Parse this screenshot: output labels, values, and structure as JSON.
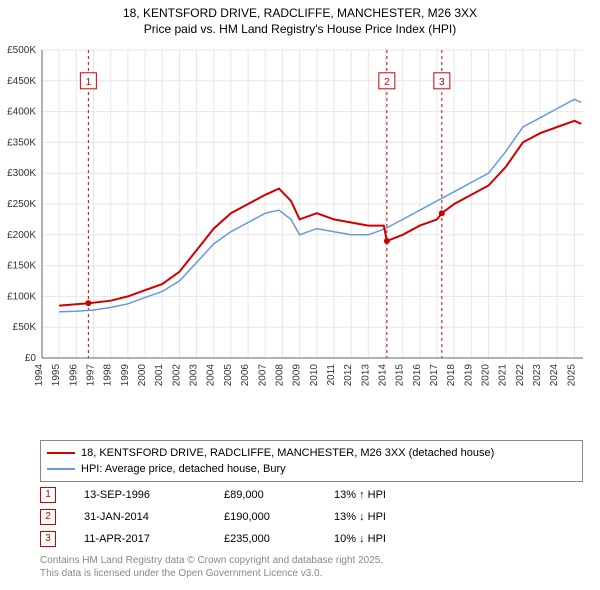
{
  "title_line1": "18, KENTSFORD DRIVE, RADCLIFFE, MANCHESTER, M26 3XX",
  "title_line2": "Price paid vs. HM Land Registry's House Price Index (HPI)",
  "chart": {
    "type": "line",
    "background_color": "#ffffff",
    "grid_color": "#e6e6e6",
    "axis_color": "#666666",
    "x_years": [
      1994,
      1995,
      1996,
      1997,
      1998,
      1999,
      2000,
      2001,
      2002,
      2003,
      2004,
      2005,
      2006,
      2007,
      2008,
      2009,
      2010,
      2011,
      2012,
      2013,
      2014,
      2015,
      2016,
      2017,
      2018,
      2019,
      2020,
      2021,
      2022,
      2023,
      2024,
      2025
    ],
    "x_min": 1994,
    "x_max": 2025.5,
    "y_min": 0,
    "y_max": 500000,
    "y_tick_step": 50000,
    "y_tick_labels": [
      "£0",
      "£50K",
      "£100K",
      "£150K",
      "£200K",
      "£250K",
      "£300K",
      "£350K",
      "£400K",
      "£450K",
      "£500K"
    ],
    "label_fontsize": 10,
    "series": [
      {
        "name": "price_paid",
        "color": "#d00000",
        "line_width": 2,
        "points": [
          [
            1995.0,
            85000
          ],
          [
            1996.7,
            89000
          ],
          [
            1998.0,
            93000
          ],
          [
            1999.0,
            100000
          ],
          [
            2000.0,
            110000
          ],
          [
            2001.0,
            120000
          ],
          [
            2002.0,
            140000
          ],
          [
            2003.0,
            175000
          ],
          [
            2004.0,
            210000
          ],
          [
            2005.0,
            235000
          ],
          [
            2006.0,
            250000
          ],
          [
            2007.0,
            265000
          ],
          [
            2007.8,
            275000
          ],
          [
            2008.5,
            255000
          ],
          [
            2009.0,
            225000
          ],
          [
            2010.0,
            235000
          ],
          [
            2011.0,
            225000
          ],
          [
            2012.0,
            220000
          ],
          [
            2013.0,
            215000
          ],
          [
            2013.9,
            215000
          ],
          [
            2014.08,
            190000
          ],
          [
            2015.0,
            200000
          ],
          [
            2016.0,
            215000
          ],
          [
            2017.0,
            225000
          ],
          [
            2017.28,
            235000
          ],
          [
            2018.0,
            250000
          ],
          [
            2019.0,
            265000
          ],
          [
            2020.0,
            280000
          ],
          [
            2021.0,
            310000
          ],
          [
            2022.0,
            350000
          ],
          [
            2023.0,
            365000
          ],
          [
            2024.0,
            375000
          ],
          [
            2025.0,
            385000
          ],
          [
            2025.4,
            380000
          ]
        ]
      },
      {
        "name": "hpi",
        "color": "#6699dd",
        "line_width": 1.5,
        "points": [
          [
            1995.0,
            75000
          ],
          [
            1996.0,
            76000
          ],
          [
            1997.0,
            78000
          ],
          [
            1998.0,
            82000
          ],
          [
            1999.0,
            88000
          ],
          [
            2000.0,
            98000
          ],
          [
            2001.0,
            108000
          ],
          [
            2002.0,
            125000
          ],
          [
            2003.0,
            155000
          ],
          [
            2004.0,
            185000
          ],
          [
            2005.0,
            205000
          ],
          [
            2006.0,
            220000
          ],
          [
            2007.0,
            235000
          ],
          [
            2007.8,
            240000
          ],
          [
            2008.5,
            225000
          ],
          [
            2009.0,
            200000
          ],
          [
            2010.0,
            210000
          ],
          [
            2011.0,
            205000
          ],
          [
            2012.0,
            200000
          ],
          [
            2013.0,
            200000
          ],
          [
            2014.0,
            210000
          ],
          [
            2015.0,
            225000
          ],
          [
            2016.0,
            240000
          ],
          [
            2017.0,
            255000
          ],
          [
            2018.0,
            270000
          ],
          [
            2019.0,
            285000
          ],
          [
            2020.0,
            300000
          ],
          [
            2021.0,
            335000
          ],
          [
            2022.0,
            375000
          ],
          [
            2023.0,
            390000
          ],
          [
            2024.0,
            405000
          ],
          [
            2025.0,
            420000
          ],
          [
            2025.4,
            415000
          ]
        ]
      }
    ],
    "markers": [
      {
        "n": "1",
        "year": 1996.7,
        "badge_y": 450000
      },
      {
        "n": "2",
        "year": 2014.08,
        "badge_y": 450000
      },
      {
        "n": "3",
        "year": 2017.28,
        "badge_y": 450000
      }
    ],
    "marker_line_color": "#d00000",
    "marker_line_dash": "3,3"
  },
  "legend": {
    "items": [
      {
        "color": "#d00000",
        "label": "18, KENTSFORD DRIVE, RADCLIFFE, MANCHESTER, M26 3XX (detached house)"
      },
      {
        "color": "#6699dd",
        "label": "HPI: Average price, detached house, Bury"
      }
    ]
  },
  "marker_table": {
    "rows": [
      {
        "n": "1",
        "date": "13-SEP-1996",
        "price": "£89,000",
        "delta": "13% ↑ HPI"
      },
      {
        "n": "2",
        "date": "31-JAN-2014",
        "price": "£190,000",
        "delta": "13% ↓ HPI"
      },
      {
        "n": "3",
        "date": "11-APR-2017",
        "price": "£235,000",
        "delta": "10% ↓ HPI"
      }
    ]
  },
  "footer_line1": "Contains HM Land Registry data © Crown copyright and database right 2025.",
  "footer_line2": "This data is licensed under the Open Government Licence v3.0."
}
